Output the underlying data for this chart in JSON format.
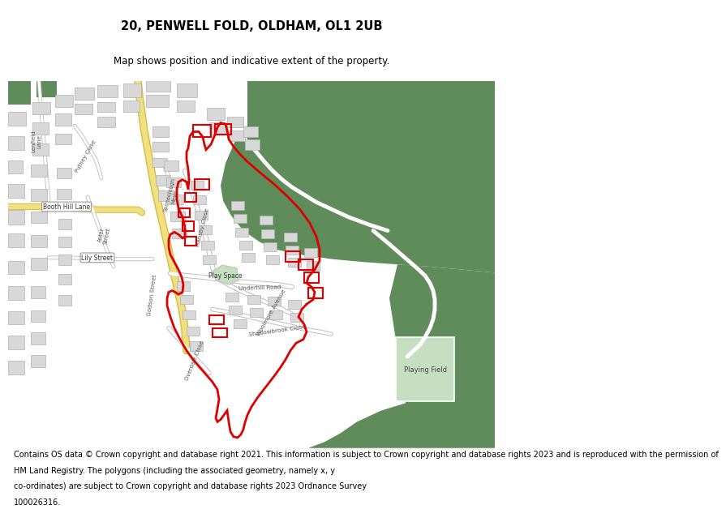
{
  "title_line1": "20, PENWELL FOLD, OLDHAM, OL1 2UB",
  "title_line2": "Map shows position and indicative extent of the property.",
  "footer_lines": [
    "Contains OS data © Crown copyright and database right 2021. This information is subject to Crown copyright and database rights 2023 and is reproduced with the permission of",
    "HM Land Registry. The polygons (including the associated geometry, namely x, y co-ordinates) are subject to Crown copyright and database rights 2023 Ordnance Survey",
    "100026316."
  ],
  "map_bg": "#efefef",
  "green_dark": "#5f8c5a",
  "green_light": "#c5dfc0",
  "road_yellow": "#f0e080",
  "road_yellow_edge": "#d4bc45",
  "road_white": "#ffffff",
  "road_grey_edge": "#c0c0c0",
  "building_fill": "#d8d8d8",
  "building_edge": "#b0b0b0",
  "red": "#dd0000",
  "fig_bg": "#ffffff"
}
